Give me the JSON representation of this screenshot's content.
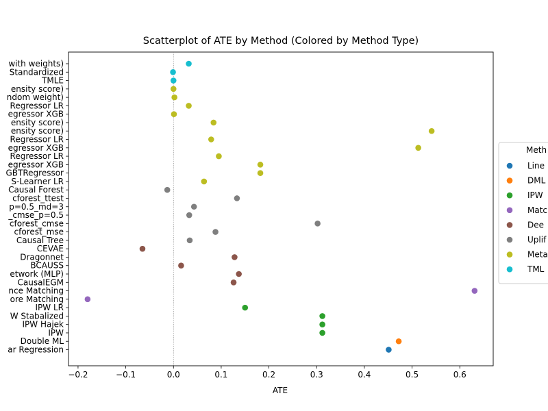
{
  "chart_data": {
    "type": "scatter",
    "title": "Scatterplot of ATE by Method (Colored by Method Type)",
    "xlabel": "ATE",
    "ylabel": "",
    "xlim": [
      -0.22,
      0.67
    ],
    "xticks": [
      -0.2,
      -0.1,
      0.0,
      0.1,
      0.2,
      0.3,
      0.4,
      0.5,
      0.6
    ],
    "xtick_labels": [
      "−0.2",
      "−0.1",
      "0.0",
      "0.1",
      "0.2",
      "0.3",
      "0.4",
      "0.5",
      "0.6"
    ],
    "reference_line": {
      "x": 0.0,
      "style": "dotted",
      "color": "#808080"
    },
    "grid": false,
    "legend": {
      "title": "Meth",
      "placement": "right",
      "entries": [
        {
          "label": "Line",
          "color": "#1f77b4"
        },
        {
          "label": "DML",
          "color": "#ff7f0e"
        },
        {
          "label": "IPW",
          "color": "#2ca02c"
        },
        {
          "label": "Matc",
          "color": "#9467bd"
        },
        {
          "label": "Dee",
          "color": "#8c564b"
        },
        {
          "label": "Uplif",
          "color": "#7f7f7f"
        },
        {
          "label": "Meta",
          "color": "#bcbd22"
        },
        {
          "label": "TML",
          "color": "#17becf"
        }
      ]
    },
    "points": [
      {
        "label": "ar Regression",
        "x": 0.451,
        "color": "#1f77b4"
      },
      {
        "label": "Double ML",
        "x": 0.472,
        "color": "#ff7f0e"
      },
      {
        "label": "IPW",
        "x": 0.312,
        "color": "#2ca02c"
      },
      {
        "label": "IPW Hajek",
        "x": 0.312,
        "color": "#2ca02c"
      },
      {
        "label": "W Stabalized",
        "x": 0.312,
        "color": "#2ca02c"
      },
      {
        "label": "IPW LR",
        "x": 0.15,
        "color": "#2ca02c"
      },
      {
        "label": "ore Matching",
        "x": -0.18,
        "color": "#9467bd"
      },
      {
        "label": "nce Matching",
        "x": 0.631,
        "color": "#9467bd"
      },
      {
        "label": "CausalEGM",
        "x": 0.126,
        "color": "#8c564b"
      },
      {
        "label": "etwork (MLP)",
        "x": 0.137,
        "color": "#8c564b"
      },
      {
        "label": "BCAUSS",
        "x": 0.016,
        "color": "#8c564b"
      },
      {
        "label": "Dragonnet",
        "x": 0.128,
        "color": "#8c564b"
      },
      {
        "label": "CEVAE",
        "x": -0.065,
        "color": "#8c564b"
      },
      {
        "label": "Causal Tree",
        "x": 0.034,
        "color": "#7f7f7f"
      },
      {
        "label": "cforest_mse",
        "x": 0.088,
        "color": "#7f7f7f"
      },
      {
        "label": "cforest_cmse",
        "x": 0.302,
        "color": "#7f7f7f"
      },
      {
        "label": "_cmse_p=0.5",
        "x": 0.033,
        "color": "#7f7f7f"
      },
      {
        "label": "p=0.5_md=3",
        "x": 0.043,
        "color": "#7f7f7f"
      },
      {
        "label": "cforest_ttest",
        "x": 0.133,
        "color": "#7f7f7f"
      },
      {
        "label": "Causal Forest",
        "x": -0.013,
        "color": "#7f7f7f"
      },
      {
        "label": "S-Learner LR",
        "x": 0.064,
        "color": "#bcbd22"
      },
      {
        "label": "GBTRegressor",
        "x": 0.182,
        "color": "#bcbd22"
      },
      {
        "label": "egressor XGB",
        "x": 0.182,
        "color": "#bcbd22"
      },
      {
        "label": "Regressor LR",
        "x": 0.095,
        "color": "#bcbd22"
      },
      {
        "label": "egressor XGB",
        "x": 0.513,
        "color": "#bcbd22"
      },
      {
        "label": "Regressor LR",
        "x": 0.079,
        "color": "#bcbd22"
      },
      {
        "label": "ensity score)",
        "x": 0.541,
        "color": "#bcbd22"
      },
      {
        "label": "ensity score)",
        "x": 0.084,
        "color": "#bcbd22"
      },
      {
        "label": "egressor XGB",
        "x": 0.001,
        "color": "#bcbd22"
      },
      {
        "label": "Regressor LR",
        "x": 0.032,
        "color": "#bcbd22"
      },
      {
        "label": "ndom weight)",
        "x": 0.002,
        "color": "#bcbd22"
      },
      {
        "label": "ensity score)",
        "x": 0.0,
        "color": "#bcbd22"
      },
      {
        "label": "TMLE",
        "x": 0.0,
        "color": "#17becf"
      },
      {
        "label": "Standardized",
        "x": -0.001,
        "color": "#17becf"
      },
      {
        "label": "with weights)",
        "x": 0.032,
        "color": "#17becf"
      }
    ]
  }
}
